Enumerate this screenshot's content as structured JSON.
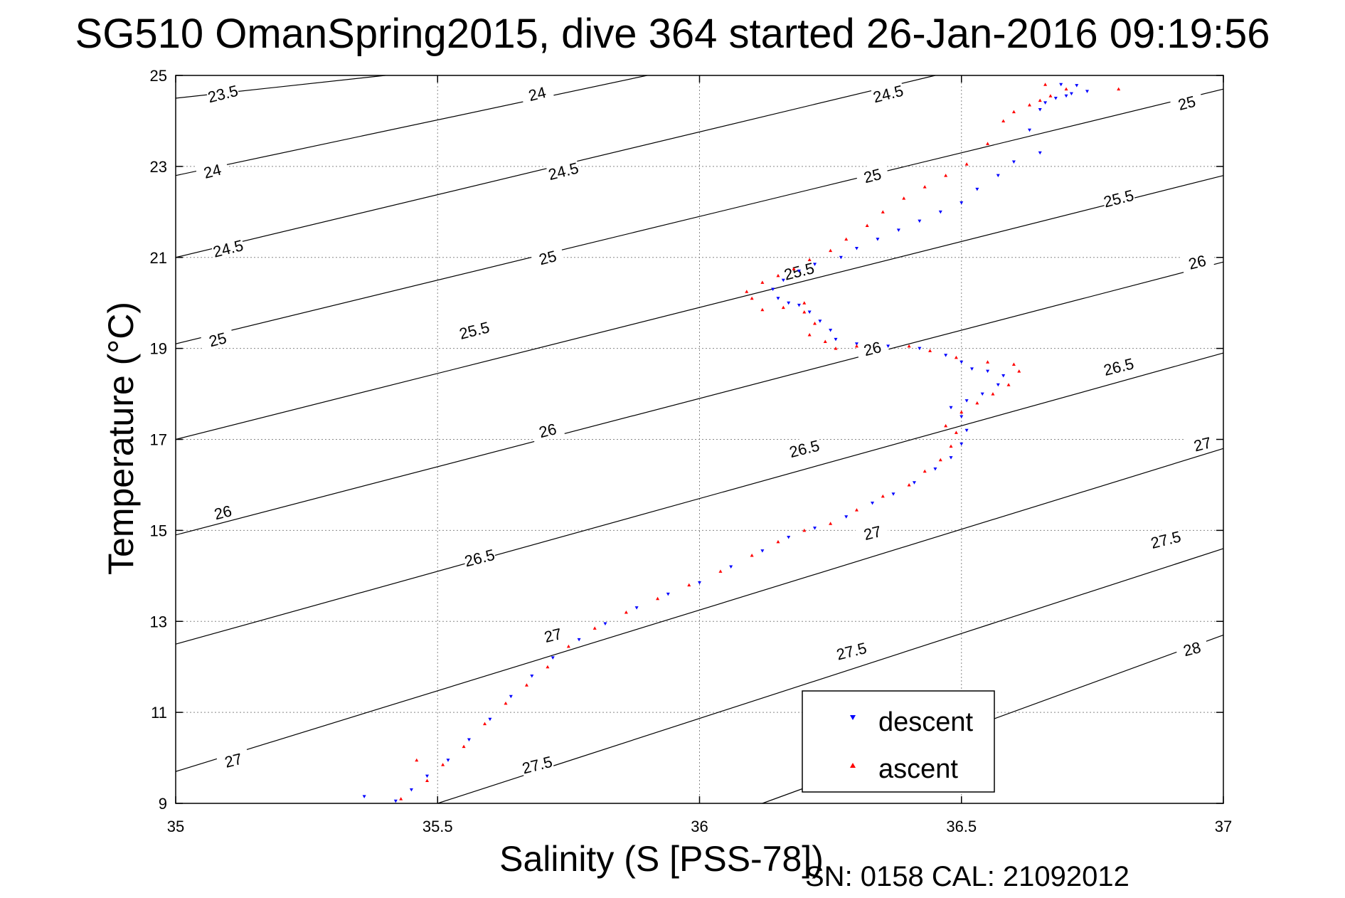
{
  "chart_data": {
    "type": "scatter",
    "title": "SG510 OmanSpring2015, dive 364 started 26-Jan-2016 09:19:56",
    "xlabel": "Salinity (S [PSS-78])",
    "ylabel": "Temperature (°C)",
    "xlim": [
      35,
      37
    ],
    "ylim": [
      9,
      25
    ],
    "xticks": [
      "35",
      "35.5",
      "36",
      "36.5",
      "37"
    ],
    "yticks": [
      "9",
      "11",
      "13",
      "15",
      "17",
      "19",
      "21",
      "23",
      "25"
    ],
    "grid": true,
    "legend_position": "bottom-right",
    "footer": "SN: 0158  CAL: 21092012",
    "series": [
      {
        "name": "descent",
        "color": "#0000ff",
        "marker": "triangle-down",
        "points": [
          [
            35.36,
            9.15
          ],
          [
            35.42,
            9.05
          ],
          [
            35.45,
            9.3
          ],
          [
            35.48,
            9.6
          ],
          [
            35.52,
            9.95
          ],
          [
            35.56,
            10.4
          ],
          [
            35.6,
            10.85
          ],
          [
            35.64,
            11.35
          ],
          [
            35.68,
            11.8
          ],
          [
            35.72,
            12.2
          ],
          [
            35.77,
            12.6
          ],
          [
            35.82,
            12.95
          ],
          [
            35.88,
            13.3
          ],
          [
            35.94,
            13.6
          ],
          [
            36.0,
            13.85
          ],
          [
            36.06,
            14.2
          ],
          [
            36.12,
            14.55
          ],
          [
            36.17,
            14.85
          ],
          [
            36.22,
            15.05
          ],
          [
            36.28,
            15.3
          ],
          [
            36.33,
            15.6
          ],
          [
            36.37,
            15.8
          ],
          [
            36.41,
            16.05
          ],
          [
            36.45,
            16.35
          ],
          [
            36.48,
            16.6
          ],
          [
            36.5,
            16.9
          ],
          [
            36.51,
            17.2
          ],
          [
            36.5,
            17.5
          ],
          [
            36.48,
            17.7
          ],
          [
            36.51,
            17.85
          ],
          [
            36.54,
            18.0
          ],
          [
            36.57,
            18.2
          ],
          [
            36.58,
            18.4
          ],
          [
            36.55,
            18.5
          ],
          [
            36.52,
            18.55
          ],
          [
            36.5,
            18.7
          ],
          [
            36.47,
            18.85
          ],
          [
            36.42,
            19.0
          ],
          [
            36.36,
            19.05
          ],
          [
            36.3,
            19.1
          ],
          [
            36.26,
            19.2
          ],
          [
            36.25,
            19.4
          ],
          [
            36.23,
            19.6
          ],
          [
            36.21,
            19.8
          ],
          [
            36.19,
            19.95
          ],
          [
            36.17,
            20.0
          ],
          [
            36.15,
            20.1
          ],
          [
            36.14,
            20.3
          ],
          [
            36.16,
            20.5
          ],
          [
            36.19,
            20.7
          ],
          [
            36.22,
            20.85
          ],
          [
            36.27,
            21.0
          ],
          [
            36.3,
            21.2
          ],
          [
            36.34,
            21.4
          ],
          [
            36.38,
            21.6
          ],
          [
            36.42,
            21.8
          ],
          [
            36.46,
            22.0
          ],
          [
            36.5,
            22.2
          ],
          [
            36.53,
            22.5
          ],
          [
            36.57,
            22.8
          ],
          [
            36.6,
            23.1
          ],
          [
            36.65,
            23.3
          ],
          [
            36.66,
            24.4
          ],
          [
            36.68,
            24.5
          ],
          [
            36.7,
            24.55
          ],
          [
            36.71,
            24.6
          ],
          [
            36.69,
            24.8
          ],
          [
            36.72,
            24.78
          ],
          [
            36.74,
            24.65
          ],
          [
            36.65,
            24.25
          ],
          [
            36.63,
            23.8
          ]
        ]
      },
      {
        "name": "ascent",
        "color": "#ff0000",
        "marker": "triangle-up",
        "points": [
          [
            35.43,
            9.1
          ],
          [
            35.46,
            9.95
          ],
          [
            35.48,
            9.5
          ],
          [
            35.51,
            9.85
          ],
          [
            35.55,
            10.25
          ],
          [
            35.59,
            10.75
          ],
          [
            35.63,
            11.2
          ],
          [
            35.67,
            11.6
          ],
          [
            35.71,
            12.0
          ],
          [
            35.75,
            12.45
          ],
          [
            35.8,
            12.85
          ],
          [
            35.86,
            13.2
          ],
          [
            35.92,
            13.5
          ],
          [
            35.98,
            13.8
          ],
          [
            36.04,
            14.1
          ],
          [
            36.1,
            14.45
          ],
          [
            36.15,
            14.75
          ],
          [
            36.2,
            15.0
          ],
          [
            36.25,
            15.15
          ],
          [
            36.3,
            15.45
          ],
          [
            36.35,
            15.75
          ],
          [
            36.4,
            16.0
          ],
          [
            36.43,
            16.3
          ],
          [
            36.46,
            16.55
          ],
          [
            36.48,
            16.85
          ],
          [
            36.49,
            17.15
          ],
          [
            36.47,
            17.3
          ],
          [
            36.5,
            17.6
          ],
          [
            36.53,
            17.8
          ],
          [
            36.56,
            18.0
          ],
          [
            36.59,
            18.2
          ],
          [
            36.61,
            18.5
          ],
          [
            36.6,
            18.65
          ],
          [
            36.55,
            18.7
          ],
          [
            36.49,
            18.8
          ],
          [
            36.44,
            18.95
          ],
          [
            36.4,
            19.05
          ],
          [
            36.3,
            19.05
          ],
          [
            36.26,
            19.0
          ],
          [
            36.24,
            19.15
          ],
          [
            36.21,
            19.3
          ],
          [
            36.22,
            19.55
          ],
          [
            36.2,
            19.8
          ],
          [
            36.2,
            20.0
          ],
          [
            36.16,
            19.9
          ],
          [
            36.12,
            19.85
          ],
          [
            36.1,
            20.1
          ],
          [
            36.09,
            20.25
          ],
          [
            36.12,
            20.45
          ],
          [
            36.15,
            20.6
          ],
          [
            36.18,
            20.75
          ],
          [
            36.21,
            20.95
          ],
          [
            36.25,
            21.15
          ],
          [
            36.28,
            21.4
          ],
          [
            36.32,
            21.7
          ],
          [
            36.35,
            22.0
          ],
          [
            36.39,
            22.3
          ],
          [
            36.43,
            22.55
          ],
          [
            36.47,
            22.8
          ],
          [
            36.51,
            23.05
          ],
          [
            36.55,
            23.5
          ],
          [
            36.58,
            24.0
          ],
          [
            36.6,
            24.2
          ],
          [
            36.63,
            24.35
          ],
          [
            36.65,
            24.45
          ],
          [
            36.67,
            24.55
          ],
          [
            36.66,
            24.8
          ],
          [
            36.7,
            24.7
          ],
          [
            36.8,
            24.7
          ]
        ]
      }
    ],
    "isopycnals": [
      {
        "sigma": "23.5",
        "labels": [
          [
            35.09,
            24.6
          ]
        ]
      },
      {
        "sigma": "24",
        "labels": [
          [
            35.07,
            22.9
          ],
          [
            35.69,
            24.6
          ]
        ]
      },
      {
        "sigma": "24.5",
        "labels": [
          [
            35.1,
            21.2
          ],
          [
            35.74,
            22.9
          ],
          [
            36.36,
            24.6
          ]
        ]
      },
      {
        "sigma": "25",
        "labels": [
          [
            35.08,
            19.2
          ],
          [
            35.71,
            21.0
          ],
          [
            36.33,
            22.8
          ],
          [
            36.93,
            24.4
          ]
        ]
      },
      {
        "sigma": "25.5",
        "labels": [
          [
            35.57,
            19.4
          ],
          [
            36.19,
            20.7
          ],
          [
            36.8,
            22.3
          ]
        ]
      },
      {
        "sigma": "26",
        "labels": [
          [
            35.09,
            15.4
          ],
          [
            35.71,
            17.2
          ],
          [
            36.33,
            19.0
          ],
          [
            36.95,
            20.9
          ]
        ]
      },
      {
        "sigma": "26.5",
        "labels": [
          [
            35.58,
            14.4
          ],
          [
            36.2,
            16.8
          ],
          [
            36.8,
            18.6
          ]
        ]
      },
      {
        "sigma": "27",
        "labels": [
          [
            35.11,
            9.95
          ],
          [
            35.72,
            12.7
          ],
          [
            36.33,
            14.95
          ],
          [
            36.96,
            16.9
          ]
        ]
      },
      {
        "sigma": "27.5",
        "labels": [
          [
            35.69,
            9.85
          ],
          [
            36.29,
            12.35
          ],
          [
            36.89,
            14.8
          ]
        ]
      },
      {
        "sigma": "28",
        "labels": [
          [
            36.94,
            12.4
          ]
        ]
      }
    ],
    "isopycnal_lines": [
      [
        [
          35.0,
          24.5
        ],
        [
          35.4,
          25.0
        ]
      ],
      [
        [
          35.0,
          22.8
        ],
        [
          35.9,
          25.0
        ]
      ],
      [
        [
          35.0,
          21.0
        ],
        [
          36.45,
          25.0
        ]
      ],
      [
        [
          35.0,
          19.1
        ],
        [
          37.0,
          24.7
        ]
      ],
      [
        [
          35.0,
          17.0
        ],
        [
          37.0,
          22.8
        ]
      ],
      [
        [
          35.0,
          14.9
        ],
        [
          37.0,
          20.9
        ]
      ],
      [
        [
          35.0,
          12.5
        ],
        [
          37.0,
          18.9
        ]
      ],
      [
        [
          35.0,
          9.7
        ],
        [
          37.0,
          16.8
        ]
      ],
      [
        [
          35.5,
          9.0
        ],
        [
          37.0,
          14.6
        ]
      ],
      [
        [
          36.12,
          9.0
        ],
        [
          37.0,
          12.7
        ]
      ]
    ]
  }
}
